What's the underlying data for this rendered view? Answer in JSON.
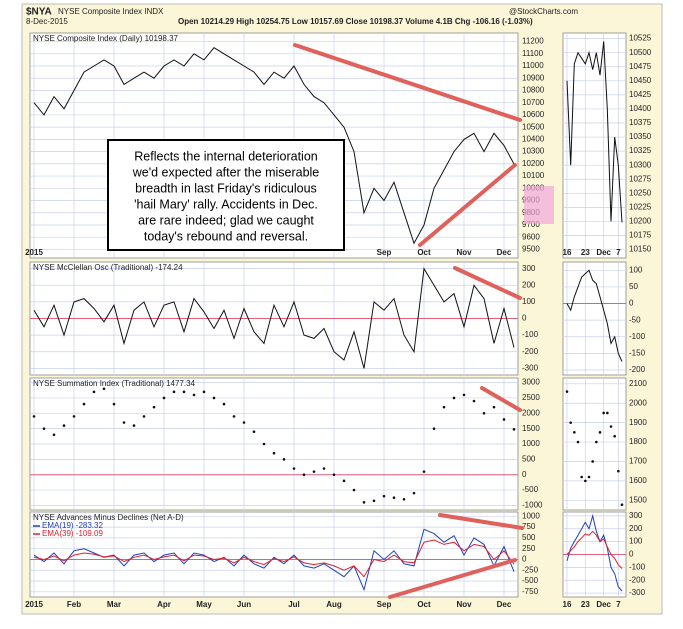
{
  "header": {
    "symbol": "$NYA",
    "name": "NYSE Composite Index INDX",
    "source": "@StockCharts.com",
    "date": "8-Dec-2015",
    "quote": "Open 10214.29 High 10254.75 Low 10157.69 Close 10198.37 Volume 4.1B Chg -106.16 (-1.03%)"
  },
  "chart_data": [
    {
      "type": "line",
      "title": "NYSE Composite Index (Daily) 10198.37",
      "color": "#111111",
      "grid": true,
      "annotation": [
        "Reflects the internal deterioration",
        "we'd expected after the miserable",
        "breadth in last Friday's ridiculous",
        "'hail Mary' rally. Accidents in Dec.",
        "are rare indeed; glad we caught",
        "today's rebound and reversal."
      ],
      "categories": [
        "2015",
        null,
        null,
        null,
        null,
        null,
        null,
        null,
        null,
        null,
        null,
        null,
        null,
        null,
        null,
        null,
        null,
        null,
        null,
        null,
        null,
        null,
        null,
        null,
        null,
        null,
        null,
        null,
        null,
        null,
        null,
        null,
        null,
        null,
        null,
        "Sep",
        null,
        null,
        null,
        "Oct",
        null,
        null,
        null,
        "Nov",
        null,
        null,
        null,
        "Dec",
        null
      ],
      "values": [
        10700,
        10600,
        10750,
        10650,
        10800,
        10950,
        11000,
        11050,
        11000,
        10850,
        10900,
        10950,
        10900,
        11000,
        11050,
        11000,
        11100,
        11050,
        11150,
        11100,
        11050,
        11000,
        10950,
        10850,
        10950,
        10900,
        11000,
        10850,
        10750,
        10700,
        10600,
        10500,
        10300,
        9800,
        10000,
        9900,
        10050,
        9800,
        9550,
        9700,
        10000,
        10150,
        10300,
        10400,
        10450,
        10300,
        10450,
        10350,
        10198.37
      ],
      "ylim": [
        9430,
        11270
      ],
      "yticks": [
        9500,
        9600,
        9700,
        9800,
        9900,
        10000,
        10100,
        10200,
        10300,
        10400,
        10500,
        10600,
        10700,
        10800,
        10900,
        11000,
        11100,
        11200
      ]
    },
    {
      "type": "line",
      "title": "NYSE McClellan Osc (Traditional) -174.24",
      "color": "#111111",
      "grid": true,
      "reference_line": 0,
      "reference_color": "#e0607a",
      "values": [
        50,
        -50,
        80,
        -100,
        100,
        120,
        60,
        -20,
        80,
        -150,
        50,
        100,
        -50,
        80,
        100,
        -80,
        120,
        40,
        -60,
        50,
        -120,
        60,
        -80,
        -150,
        80,
        -50,
        100,
        -100,
        -120,
        -60,
        -200,
        -250,
        -80,
        -300,
        100,
        50,
        120,
        -100,
        -200,
        300,
        200,
        100,
        150,
        -50,
        200,
        120,
        -150,
        60,
        -174.24
      ],
      "ylim": [
        -340,
        340
      ],
      "yticks": [
        -300,
        -200,
        -100,
        0,
        100,
        200,
        300
      ]
    },
    {
      "type": "dot",
      "title": "NYSE Summation Index (Traditional) 1477.34",
      "color": "#111111",
      "grid": true,
      "reference_line": 0,
      "reference_color": "#e0607a",
      "values": [
        1900,
        1500,
        1300,
        1600,
        1900,
        2300,
        2700,
        2800,
        2300,
        1700,
        1600,
        1900,
        2200,
        2500,
        2700,
        2700,
        2600,
        2700,
        2500,
        2300,
        1900,
        1700,
        1400,
        1000,
        700,
        500,
        200,
        0,
        100,
        200,
        0,
        -200,
        -500,
        -900,
        -850,
        -700,
        -750,
        -800,
        -600,
        100,
        1500,
        2200,
        2500,
        2600,
        2400,
        2000,
        2200,
        1800,
        1477.34
      ],
      "ylim": [
        -1150,
        3150
      ],
      "yticks": [
        -1000,
        -500,
        0,
        500,
        1000,
        1500,
        2000,
        2500,
        3000
      ]
    },
    {
      "type": "line",
      "title": "NYSE Advances Minus Declines (Net A-D)",
      "grid": true,
      "reference_line": 0,
      "reference_color": "#e0607a",
      "categories": [
        "2015",
        null,
        null,
        null,
        "Feb",
        null,
        null,
        null,
        "Mar",
        null,
        null,
        null,
        null,
        "Apr",
        null,
        null,
        null,
        "May",
        null,
        null,
        null,
        "Jun",
        null,
        null,
        null,
        null,
        "Jul",
        null,
        null,
        null,
        "Aug",
        null,
        null,
        null,
        null,
        "Sep",
        null,
        null,
        null,
        "Oct",
        null,
        null,
        null,
        "Nov",
        null,
        null,
        null,
        "Dec",
        null
      ],
      "series": [
        {
          "name": "EMA(19) -283.32",
          "color": "#2040c0",
          "values": [
            100,
            -50,
            150,
            -100,
            200,
            250,
            150,
            50,
            100,
            -150,
            100,
            150,
            -50,
            100,
            150,
            -100,
            150,
            100,
            -50,
            50,
            -150,
            100,
            -100,
            -200,
            50,
            -100,
            100,
            -150,
            -200,
            -100,
            -250,
            -400,
            -150,
            -700,
            200,
            0,
            200,
            -100,
            -150,
            700,
            600,
            400,
            550,
            100,
            500,
            350,
            -150,
            300,
            -283.32
          ]
        },
        {
          "name": "EMA(39) -109.09",
          "color": "#e02030",
          "values": [
            50,
            0,
            80,
            -30,
            100,
            150,
            120,
            60,
            80,
            -50,
            50,
            100,
            0,
            60,
            100,
            -30,
            100,
            80,
            0,
            30,
            -80,
            50,
            -50,
            -120,
            20,
            -50,
            60,
            -80,
            -120,
            -80,
            -150,
            -250,
            -150,
            -400,
            0,
            -50,
            100,
            -50,
            -80,
            400,
            450,
            350,
            400,
            200,
            350,
            300,
            0,
            200,
            -109.09
          ]
        }
      ],
      "ylim": [
        -870,
        1100
      ],
      "yticks": [
        -750,
        -500,
        -250,
        0,
        250,
        500,
        750,
        1000
      ]
    },
    {
      "type": "line",
      "color": "#111111",
      "grid": true,
      "categories": [
        "16",
        null,
        null,
        null,
        null,
        "23",
        null,
        null,
        null,
        null,
        "Dec",
        null,
        null,
        null,
        "7",
        null
      ],
      "values": [
        10450,
        10300,
        10480,
        10500,
        10490,
        10480,
        10500,
        10470,
        10500,
        10460,
        10520,
        10400,
        10200,
        10350,
        10300,
        10198.37
      ],
      "ylim": [
        10135,
        10535
      ],
      "yticks": [
        10150,
        10175,
        10200,
        10225,
        10250,
        10275,
        10300,
        10325,
        10350,
        10375,
        10400,
        10425,
        10450,
        10475,
        10500,
        10525
      ]
    },
    {
      "type": "line",
      "color": "#111111",
      "grid": true,
      "reference_line": 0,
      "reference_color": "#e0607a",
      "values": [
        0,
        -20,
        20,
        50,
        80,
        90,
        100,
        70,
        60,
        20,
        -20,
        -60,
        -120,
        -100,
        -150,
        -174.24
      ],
      "ylim": [
        -215,
        125
      ],
      "yticks": [
        -200,
        -150,
        -100,
        -50,
        0,
        50,
        100
      ]
    },
    {
      "type": "dot",
      "color": "#111111",
      "grid": true,
      "values": [
        2060,
        1900,
        1850,
        1800,
        1620,
        1600,
        1620,
        1700,
        1800,
        1850,
        1950,
        1950,
        1880,
        1830,
        1650,
        1477.34
      ],
      "ylim": [
        1450,
        2130
      ],
      "yticks": [
        1500,
        1600,
        1700,
        1800,
        1900,
        2000,
        2100
      ]
    },
    {
      "type": "line",
      "grid": true,
      "reference_line": 0,
      "reference_color": "#e0607a",
      "categories": [
        "16",
        null,
        null,
        null,
        null,
        "23",
        null,
        null,
        null,
        null,
        "Dec",
        null,
        null,
        null,
        "7",
        null
      ],
      "series": [
        {
          "color": "#2040c0",
          "values": [
            -50,
            50,
            100,
            150,
            200,
            250,
            200,
            300,
            180,
            100,
            150,
            50,
            -100,
            -150,
            -250,
            -283.32
          ]
        },
        {
          "color": "#e02030",
          "values": [
            0,
            30,
            60,
            100,
            130,
            160,
            150,
            180,
            150,
            100,
            120,
            60,
            0,
            -30,
            -80,
            -109.09
          ]
        }
      ],
      "ylim": [
        -330,
        330
      ],
      "yticks": [
        -300,
        -200,
        -100,
        0,
        100,
        200,
        300
      ]
    }
  ]
}
